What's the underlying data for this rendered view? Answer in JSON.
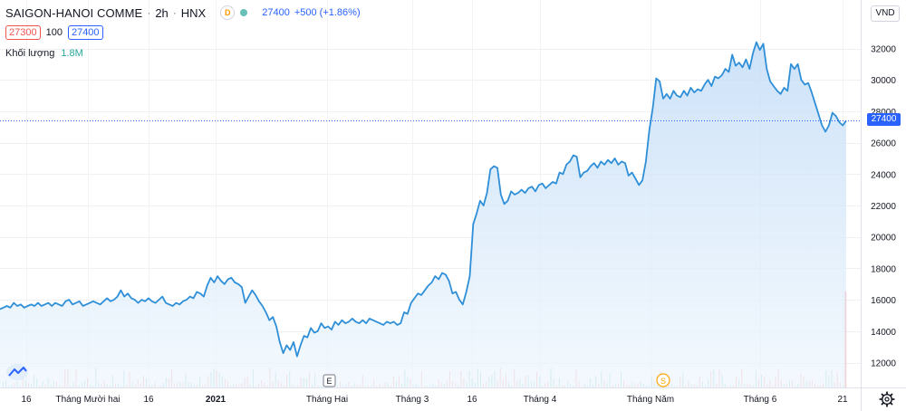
{
  "header": {
    "symbol": "SAIGON-HANOI COMME",
    "separator": "·",
    "timeframe": "2h",
    "exchange": "HNX",
    "badge": "D",
    "last": "27400",
    "change": "+500 (+1.86%)",
    "bid": "27300",
    "spread": "100",
    "ask": "27400",
    "volume_label": "Khối lượng",
    "volume_value": "1.8M",
    "currency": "VND"
  },
  "markers": {
    "earnings": "E",
    "dividend": "S"
  },
  "colors": {
    "line": "#2e8fd8",
    "area": "#d6e9fb",
    "bid": "#ef5350",
    "ask": "#2962ff",
    "volume_up": "#26a69a",
    "volume_down": "#ef5350",
    "last_price_line": "#2962ff"
  },
  "chart_data": {
    "type": "area",
    "title": "SAIGON-HANOI COMME",
    "xlabel": "",
    "ylabel": "",
    "ylim": [
      11000,
      33500
    ],
    "y_ticks": [
      12000,
      14000,
      16000,
      18000,
      20000,
      22000,
      24000,
      26000,
      28000,
      30000,
      32000
    ],
    "x_tick_labels": [
      "16",
      "Tháng Mười hai",
      "16",
      "2021",
      "Tháng Hai",
      "Tháng 3",
      "16",
      "Tháng 4",
      "Tháng Năm",
      "Tháng 6",
      "21"
    ],
    "last_price_label": "27400",
    "grid": true,
    "series": [
      {
        "values": [
          15400,
          15500,
          15600,
          15500,
          15800,
          15600,
          15700,
          15500,
          15600,
          15700,
          15600,
          15800,
          15600,
          15700,
          15800,
          15600,
          15800,
          15700,
          15600,
          15900,
          16000,
          15700,
          15800,
          15900,
          15600,
          15700,
          15800,
          15900,
          15800,
          15700,
          15900,
          16100,
          15900,
          16000,
          16200,
          16600,
          16200,
          16400,
          16100,
          16000,
          15800,
          16000,
          15900,
          16100,
          15900,
          15800,
          16000,
          16200,
          15800,
          15700,
          15600,
          15800,
          15700,
          15900,
          16000,
          16200,
          16100,
          16500,
          16400,
          16200,
          16900,
          17400,
          17100,
          17500,
          17200,
          17000,
          17300,
          17400,
          17100,
          17000,
          16800,
          15800,
          16200,
          16600,
          16300,
          15900,
          15600,
          15200,
          14700,
          14900,
          14300,
          13300,
          12600,
          13100,
          12800,
          13300,
          12400,
          13100,
          13700,
          13600,
          14200,
          13900,
          14000,
          14500,
          14200,
          14300,
          14100,
          14600,
          14400,
          14700,
          14500,
          14600,
          14800,
          14600,
          14500,
          14700,
          14500,
          14800,
          14700,
          14600,
          14500,
          14400,
          14600,
          14500,
          14600,
          14400,
          14500,
          15200,
          15100,
          15800,
          16100,
          16400,
          16300,
          16600,
          16900,
          17100,
          17500,
          17300,
          17700,
          17600,
          17200,
          16400,
          16500,
          16000,
          15700,
          16500,
          17500,
          20800,
          21500,
          22300,
          22000,
          22800,
          24300,
          24500,
          24400,
          22700,
          22100,
          22300,
          22900,
          22700,
          22800,
          23000,
          22800,
          23100,
          23200,
          22900,
          23300,
          23400,
          23100,
          23300,
          23500,
          23400,
          24100,
          24000,
          24600,
          24800,
          25200,
          25100,
          23800,
          24100,
          24200,
          24500,
          24700,
          24400,
          24800,
          24600,
          24900,
          24700,
          25000,
          24600,
          24800,
          24700,
          23900,
          24100,
          23700,
          23300,
          23600,
          24800,
          26800,
          28200,
          30100,
          29900,
          28800,
          29100,
          28800,
          29300,
          29000,
          28900,
          29300,
          29000,
          29500,
          29200,
          29400,
          29300,
          29700,
          30000,
          29600,
          30200,
          30100,
          30300,
          30700,
          30500,
          31600,
          30900,
          31100,
          30800,
          31300,
          30700,
          31700,
          32400,
          31900,
          32300,
          30700,
          29900,
          29600,
          29300,
          29100,
          29500,
          29300,
          31000,
          30700,
          31000,
          30000,
          29700,
          29800,
          29200,
          28500,
          27800,
          27100,
          26700,
          27100,
          27900,
          27700,
          27300,
          27100,
          27400
        ]
      }
    ]
  }
}
